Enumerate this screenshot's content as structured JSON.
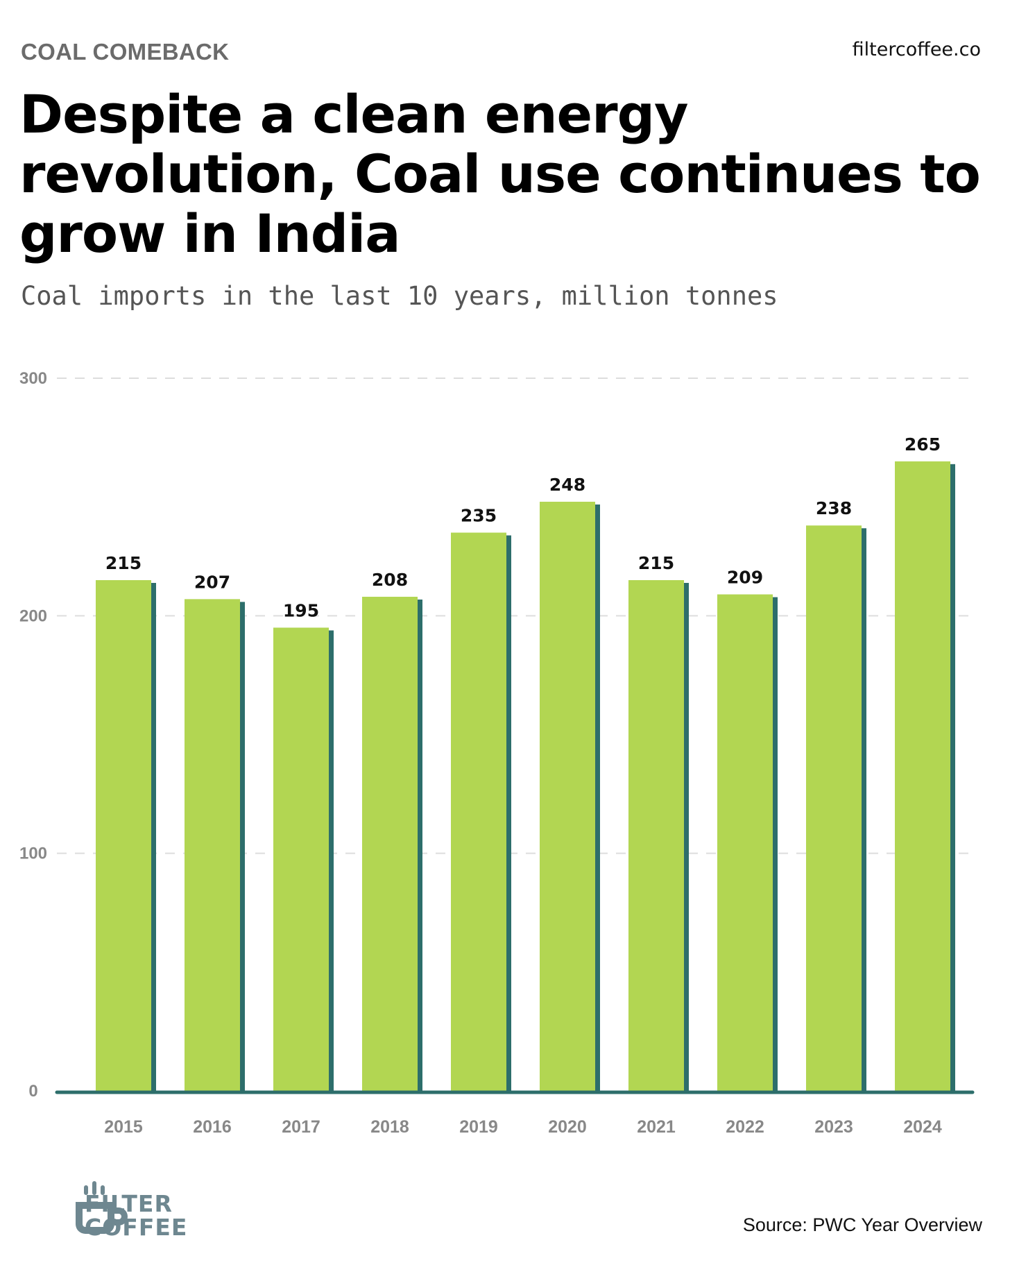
{
  "header": {
    "kicker": "COAL COMEBACK",
    "site": "filtercoffee.co",
    "title": "Despite a clean energy revolution, Coal use continues to grow in India",
    "subtitle": "Coal imports in the last 10 years, million tonnes"
  },
  "footer": {
    "logo_line1": "FILTER",
    "logo_line2": "COFFEE",
    "source": "Source: PWC Year Overview"
  },
  "colors": {
    "bar": "#b2d652",
    "bar_shadow": "#2d6e6b",
    "baseline": "#2d6e6b",
    "grid": "#dddddd",
    "tick_text": "#888888",
    "label_text": "#111111",
    "logo": "#6e8790"
  },
  "chart_data": {
    "type": "bar",
    "categories": [
      "2015",
      "2016",
      "2017",
      "2018",
      "2019",
      "2020",
      "2021",
      "2022",
      "2023",
      "2024"
    ],
    "values": [
      215,
      207,
      195,
      208,
      235,
      248,
      215,
      209,
      238,
      265
    ],
    "title": "Coal imports in the last 10 years, million tonnes",
    "xlabel": "",
    "ylabel": "",
    "ylim": [
      0,
      300
    ],
    "yticks": [
      0,
      100,
      200,
      300
    ],
    "grid": true,
    "data_labels": true
  }
}
